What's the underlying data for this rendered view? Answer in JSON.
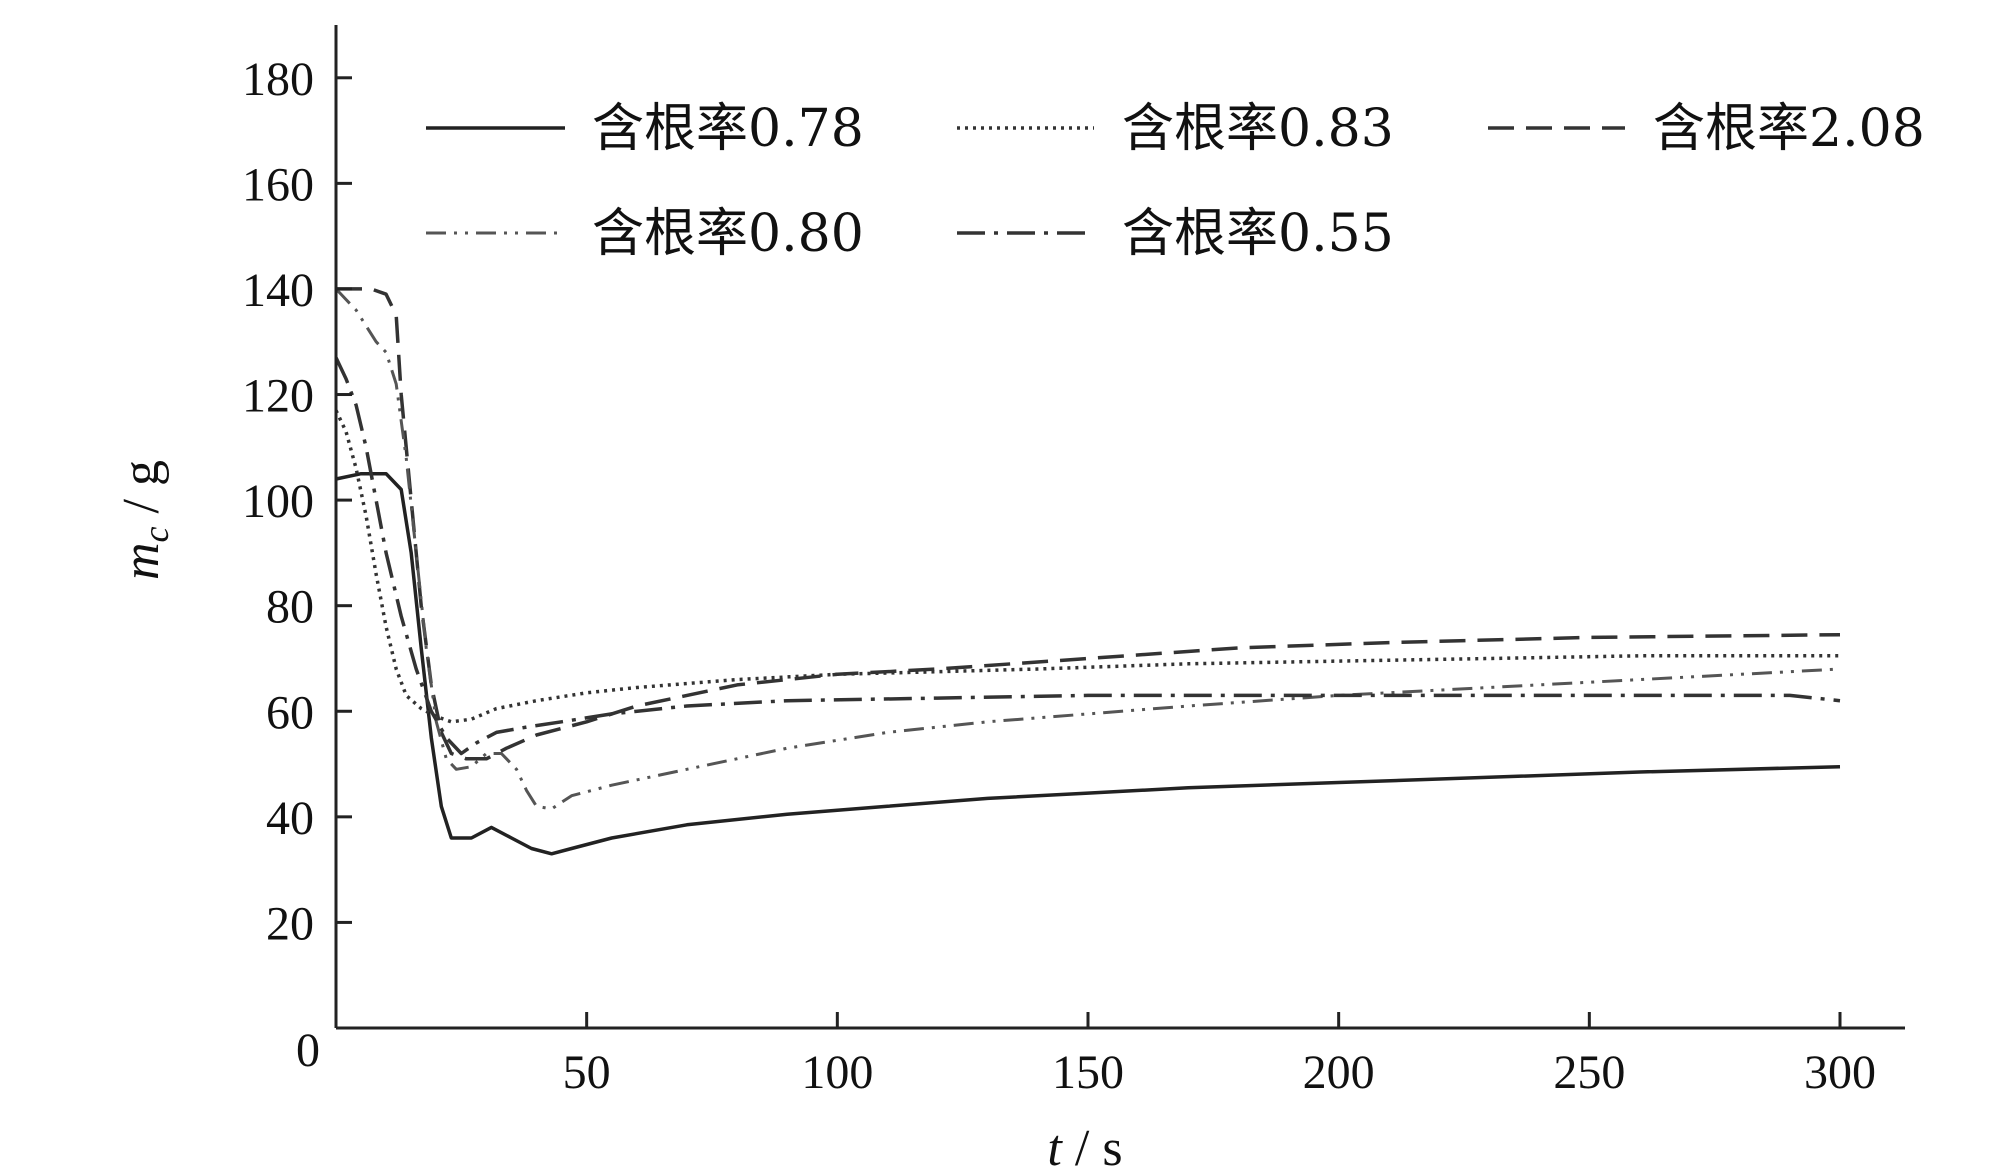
{
  "chart_data": {
    "type": "line",
    "title": "",
    "xlabel": "t / s",
    "ylabel": "m_c / g",
    "xlim": [
      0,
      312
    ],
    "ylim": [
      0,
      190
    ],
    "x_origin_label": "0",
    "xticks": [
      50,
      100,
      150,
      200,
      250,
      300
    ],
    "yticks": [
      20,
      40,
      60,
      80,
      100,
      120,
      140,
      160,
      180
    ],
    "grid": false,
    "legend_position": "top",
    "series": [
      {
        "name": "含根率0.78",
        "style": "solid",
        "color": "#222222",
        "points": [
          [
            0,
            104
          ],
          [
            5,
            105
          ],
          [
            10,
            105
          ],
          [
            13,
            102
          ],
          [
            15,
            90
          ],
          [
            17,
            72
          ],
          [
            19,
            55
          ],
          [
            21,
            42
          ],
          [
            23,
            36
          ],
          [
            27,
            36
          ],
          [
            31,
            38
          ],
          [
            35,
            36
          ],
          [
            39,
            34
          ],
          [
            43,
            33
          ],
          [
            47,
            34
          ],
          [
            55,
            36
          ],
          [
            70,
            38.5
          ],
          [
            90,
            40.5
          ],
          [
            110,
            42
          ],
          [
            130,
            43.5
          ],
          [
            150,
            44.5
          ],
          [
            170,
            45.5
          ],
          [
            200,
            46.5
          ],
          [
            230,
            47.5
          ],
          [
            260,
            48.5
          ],
          [
            300,
            49.5
          ]
        ]
      },
      {
        "name": "含根率0.83",
        "style": "dotted",
        "color": "#333333",
        "points": [
          [
            0,
            117
          ],
          [
            2,
            113
          ],
          [
            4,
            106
          ],
          [
            6,
            97
          ],
          [
            8,
            86
          ],
          [
            10,
            76
          ],
          [
            12,
            68
          ],
          [
            14,
            63
          ],
          [
            17,
            60.5
          ],
          [
            20,
            59
          ],
          [
            23,
            58
          ],
          [
            27,
            58.5
          ],
          [
            32,
            60.5
          ],
          [
            40,
            62
          ],
          [
            50,
            63.5
          ],
          [
            60,
            64.5
          ],
          [
            80,
            66
          ],
          [
            100,
            67
          ],
          [
            120,
            67.5
          ],
          [
            140,
            68
          ],
          [
            170,
            69
          ],
          [
            200,
            69.5
          ],
          [
            230,
            70
          ],
          [
            260,
            70.5
          ],
          [
            300,
            70.5
          ]
        ]
      },
      {
        "name": "含根率2.08",
        "style": "dashed",
        "color": "#333333",
        "points": [
          [
            0,
            140
          ],
          [
            3,
            140
          ],
          [
            7,
            140
          ],
          [
            10,
            139
          ],
          [
            12,
            135
          ],
          [
            13,
            120
          ],
          [
            15,
            100
          ],
          [
            17,
            80
          ],
          [
            19,
            65
          ],
          [
            21,
            56
          ],
          [
            23,
            52
          ],
          [
            26,
            51
          ],
          [
            30,
            51
          ],
          [
            34,
            53
          ],
          [
            40,
            55.5
          ],
          [
            50,
            58
          ],
          [
            60,
            61
          ],
          [
            80,
            65
          ],
          [
            100,
            67
          ],
          [
            120,
            68
          ],
          [
            150,
            70
          ],
          [
            180,
            72
          ],
          [
            210,
            73
          ],
          [
            250,
            74
          ],
          [
            300,
            74.5
          ]
        ]
      },
      {
        "name": "含根率0.80",
        "style": "dash-dot-dot",
        "color": "#555555",
        "points": [
          [
            0,
            140
          ],
          [
            2,
            138
          ],
          [
            4,
            136
          ],
          [
            6,
            133
          ],
          [
            8,
            130
          ],
          [
            10,
            128
          ],
          [
            12,
            122
          ],
          [
            14,
            108
          ],
          [
            16,
            90
          ],
          [
            18,
            72
          ],
          [
            20,
            58
          ],
          [
            22,
            51
          ],
          [
            24,
            49
          ],
          [
            27,
            49.5
          ],
          [
            30,
            52
          ],
          [
            33,
            52
          ],
          [
            36,
            49
          ],
          [
            38,
            45
          ],
          [
            40,
            42
          ],
          [
            43,
            41.5
          ],
          [
            47,
            44
          ],
          [
            55,
            46
          ],
          [
            70,
            49
          ],
          [
            90,
            53
          ],
          [
            110,
            56
          ],
          [
            130,
            58
          ],
          [
            150,
            59.5
          ],
          [
            170,
            61
          ],
          [
            200,
            63
          ],
          [
            230,
            64.5
          ],
          [
            260,
            66
          ],
          [
            290,
            67.5
          ],
          [
            300,
            68
          ]
        ]
      },
      {
        "name": "含根率0.55",
        "style": "dash-dot",
        "color": "#333333",
        "points": [
          [
            0,
            127
          ],
          [
            2,
            123
          ],
          [
            4,
            118
          ],
          [
            6,
            110
          ],
          [
            8,
            100
          ],
          [
            10,
            90
          ],
          [
            13,
            78
          ],
          [
            16,
            68
          ],
          [
            19,
            60
          ],
          [
            22,
            55
          ],
          [
            25,
            52
          ],
          [
            28,
            54
          ],
          [
            32,
            56
          ],
          [
            38,
            57
          ],
          [
            45,
            58
          ],
          [
            55,
            59.5
          ],
          [
            70,
            61
          ],
          [
            90,
            62
          ],
          [
            120,
            62.5
          ],
          [
            150,
            63
          ],
          [
            200,
            63
          ],
          [
            250,
            63
          ],
          [
            290,
            63
          ],
          [
            300,
            62
          ]
        ]
      }
    ]
  }
}
